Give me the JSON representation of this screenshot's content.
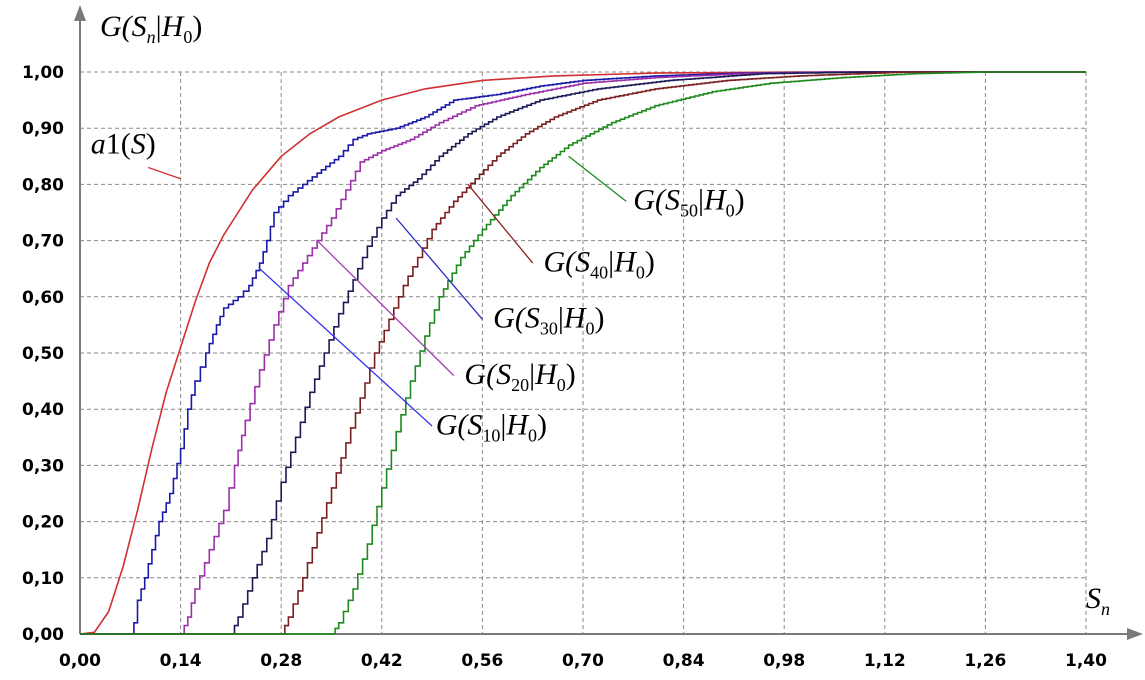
{
  "chart_data": {
    "type": "line",
    "ylabel": {
      "prefix": "G(",
      "s": "S",
      "sub": "n",
      "bar": "|",
      "h": "H",
      "hsub": "0",
      "suffix": ")"
    },
    "xlabel": {
      "s": "S",
      "sub": "n"
    },
    "xlim": [
      0,
      1.4
    ],
    "ylim": [
      0,
      1.0
    ],
    "x_ticks": [
      "0,00",
      "0,14",
      "0,28",
      "0,42",
      "0,56",
      "0,70",
      "0,84",
      "0,98",
      "1,12",
      "1,26",
      "1,40"
    ],
    "y_ticks": [
      "0,00",
      "0,10",
      "0,20",
      "0,30",
      "0,40",
      "0,50",
      "0,60",
      "0,70",
      "0,80",
      "0,90",
      "1,00"
    ],
    "grid": true,
    "series": [
      {
        "name": "a1(S)",
        "color": "#d03030",
        "stepped": false,
        "points": [
          [
            0,
            0
          ],
          [
            0.02,
            0.003
          ],
          [
            0.04,
            0.04
          ],
          [
            0.06,
            0.12
          ],
          [
            0.08,
            0.22
          ],
          [
            0.1,
            0.33
          ],
          [
            0.12,
            0.43
          ],
          [
            0.14,
            0.51
          ],
          [
            0.16,
            0.59
          ],
          [
            0.18,
            0.66
          ],
          [
            0.2,
            0.71
          ],
          [
            0.24,
            0.79
          ],
          [
            0.28,
            0.85
          ],
          [
            0.32,
            0.89
          ],
          [
            0.36,
            0.92
          ],
          [
            0.42,
            0.95
          ],
          [
            0.48,
            0.97
          ],
          [
            0.56,
            0.985
          ],
          [
            0.66,
            0.993
          ],
          [
            0.8,
            0.998
          ],
          [
            1.0,
            1.0
          ],
          [
            1.4,
            1.0
          ]
        ]
      },
      {
        "name": "G(S10|H0)",
        "color": "#1a1aaa",
        "stepped": true,
        "points": [
          [
            0,
            0
          ],
          [
            0.07,
            0.0
          ],
          [
            0.075,
            0.02
          ],
          [
            0.08,
            0.06
          ],
          [
            0.09,
            0.1
          ],
          [
            0.1,
            0.15
          ],
          [
            0.11,
            0.2
          ],
          [
            0.125,
            0.25
          ],
          [
            0.14,
            0.33
          ],
          [
            0.15,
            0.4
          ],
          [
            0.16,
            0.45
          ],
          [
            0.175,
            0.5
          ],
          [
            0.19,
            0.55
          ],
          [
            0.2,
            0.58
          ],
          [
            0.22,
            0.6
          ],
          [
            0.235,
            0.62
          ],
          [
            0.25,
            0.66
          ],
          [
            0.26,
            0.7
          ],
          [
            0.27,
            0.75
          ],
          [
            0.29,
            0.78
          ],
          [
            0.31,
            0.8
          ],
          [
            0.33,
            0.82
          ],
          [
            0.36,
            0.85
          ],
          [
            0.38,
            0.88
          ],
          [
            0.4,
            0.89
          ],
          [
            0.44,
            0.9
          ],
          [
            0.48,
            0.92
          ],
          [
            0.52,
            0.95
          ],
          [
            0.58,
            0.96
          ],
          [
            0.64,
            0.975
          ],
          [
            0.7,
            0.985
          ],
          [
            0.8,
            0.993
          ],
          [
            0.92,
            0.998
          ],
          [
            1.05,
            1.0
          ],
          [
            1.4,
            1.0
          ]
        ]
      },
      {
        "name": "G(S20|H0)",
        "color": "#9b30a8",
        "stepped": true,
        "points": [
          [
            0,
            0
          ],
          [
            0.14,
            0.0
          ],
          [
            0.15,
            0.03
          ],
          [
            0.16,
            0.08
          ],
          [
            0.18,
            0.15
          ],
          [
            0.2,
            0.22
          ],
          [
            0.215,
            0.3
          ],
          [
            0.23,
            0.38
          ],
          [
            0.25,
            0.47
          ],
          [
            0.27,
            0.55
          ],
          [
            0.29,
            0.62
          ],
          [
            0.31,
            0.66
          ],
          [
            0.33,
            0.7
          ],
          [
            0.35,
            0.74
          ],
          [
            0.37,
            0.79
          ],
          [
            0.39,
            0.84
          ],
          [
            0.42,
            0.86
          ],
          [
            0.46,
            0.88
          ],
          [
            0.5,
            0.91
          ],
          [
            0.55,
            0.94
          ],
          [
            0.62,
            0.96
          ],
          [
            0.7,
            0.98
          ],
          [
            0.8,
            0.99
          ],
          [
            0.92,
            0.997
          ],
          [
            1.05,
            1.0
          ],
          [
            1.4,
            1.0
          ]
        ]
      },
      {
        "name": "G(S30|H0)",
        "color": "#1a1a55",
        "stepped": true,
        "points": [
          [
            0,
            0
          ],
          [
            0.21,
            0.0
          ],
          [
            0.22,
            0.03
          ],
          [
            0.24,
            0.1
          ],
          [
            0.26,
            0.17
          ],
          [
            0.28,
            0.27
          ],
          [
            0.3,
            0.35
          ],
          [
            0.32,
            0.43
          ],
          [
            0.34,
            0.5
          ],
          [
            0.36,
            0.57
          ],
          [
            0.38,
            0.63
          ],
          [
            0.4,
            0.69
          ],
          [
            0.42,
            0.74
          ],
          [
            0.44,
            0.78
          ],
          [
            0.47,
            0.81
          ],
          [
            0.5,
            0.85
          ],
          [
            0.54,
            0.89
          ],
          [
            0.58,
            0.92
          ],
          [
            0.64,
            0.95
          ],
          [
            0.72,
            0.97
          ],
          [
            0.82,
            0.985
          ],
          [
            0.95,
            0.997
          ],
          [
            1.1,
            1.0
          ],
          [
            1.4,
            1.0
          ]
        ]
      },
      {
        "name": "G(S40|H0)",
        "color": "#7a1f1f",
        "stepped": true,
        "points": [
          [
            0,
            0
          ],
          [
            0.28,
            0.0
          ],
          [
            0.29,
            0.03
          ],
          [
            0.31,
            0.1
          ],
          [
            0.33,
            0.18
          ],
          [
            0.35,
            0.26
          ],
          [
            0.37,
            0.34
          ],
          [
            0.39,
            0.42
          ],
          [
            0.41,
            0.5
          ],
          [
            0.43,
            0.56
          ],
          [
            0.45,
            0.62
          ],
          [
            0.47,
            0.67
          ],
          [
            0.49,
            0.72
          ],
          [
            0.52,
            0.77
          ],
          [
            0.55,
            0.81
          ],
          [
            0.58,
            0.85
          ],
          [
            0.62,
            0.89
          ],
          [
            0.66,
            0.92
          ],
          [
            0.72,
            0.95
          ],
          [
            0.8,
            0.97
          ],
          [
            0.9,
            0.985
          ],
          [
            1.0,
            0.993
          ],
          [
            1.15,
            1.0
          ],
          [
            1.4,
            1.0
          ]
        ]
      },
      {
        "name": "G(S50|H0)",
        "color": "#1e8a1e",
        "stepped": true,
        "points": [
          [
            0,
            0
          ],
          [
            0.35,
            0.0
          ],
          [
            0.36,
            0.02
          ],
          [
            0.38,
            0.08
          ],
          [
            0.4,
            0.16
          ],
          [
            0.42,
            0.26
          ],
          [
            0.44,
            0.36
          ],
          [
            0.46,
            0.45
          ],
          [
            0.48,
            0.53
          ],
          [
            0.5,
            0.6
          ],
          [
            0.53,
            0.67
          ],
          [
            0.56,
            0.72
          ],
          [
            0.6,
            0.78
          ],
          [
            0.64,
            0.83
          ],
          [
            0.68,
            0.87
          ],
          [
            0.74,
            0.91
          ],
          [
            0.8,
            0.94
          ],
          [
            0.88,
            0.965
          ],
          [
            0.96,
            0.98
          ],
          [
            1.06,
            0.99
          ],
          [
            1.16,
            0.997
          ],
          [
            1.26,
            1.0
          ],
          [
            1.4,
            1.0
          ]
        ]
      }
    ],
    "annotations": [
      {
        "series": 0,
        "color": "#d03030",
        "label": {
          "pre": "a",
          "num": "1",
          "mid": "(",
          "s": "S",
          "post": ")"
        },
        "from": [
          0.14,
          0.81
        ],
        "to": [
          0.095,
          0.83
        ],
        "text_at": [
          0.015,
          0.855
        ]
      },
      {
        "series": 1,
        "color": "#2e2ef0",
        "label": {
          "s": "S",
          "sub": "10"
        },
        "from": [
          0.25,
          0.65
        ],
        "to": [
          0.49,
          0.37
        ],
        "text_at": [
          0.495,
          0.355
        ]
      },
      {
        "series": 2,
        "color": "#a040b0",
        "label": {
          "s": "S",
          "sub": "20"
        },
        "from": [
          0.33,
          0.7
        ],
        "to": [
          0.52,
          0.46
        ],
        "text_at": [
          0.535,
          0.445
        ]
      },
      {
        "series": 3,
        "color": "#2a2ac0",
        "label": {
          "s": "S",
          "sub": "30"
        },
        "from": [
          0.44,
          0.74
        ],
        "to": [
          0.56,
          0.56
        ],
        "text_at": [
          0.575,
          0.545
        ]
      },
      {
        "series": 4,
        "color": "#8a2020",
        "label": {
          "s": "S",
          "sub": "40"
        },
        "from": [
          0.54,
          0.8
        ],
        "to": [
          0.63,
          0.66
        ],
        "text_at": [
          0.645,
          0.645
        ]
      },
      {
        "series": 5,
        "color": "#1e8a1e",
        "label": {
          "s": "S",
          "sub": "50"
        },
        "from": [
          0.68,
          0.85
        ],
        "to": [
          0.76,
          0.77
        ],
        "text_at": [
          0.77,
          0.755
        ]
      }
    ]
  }
}
